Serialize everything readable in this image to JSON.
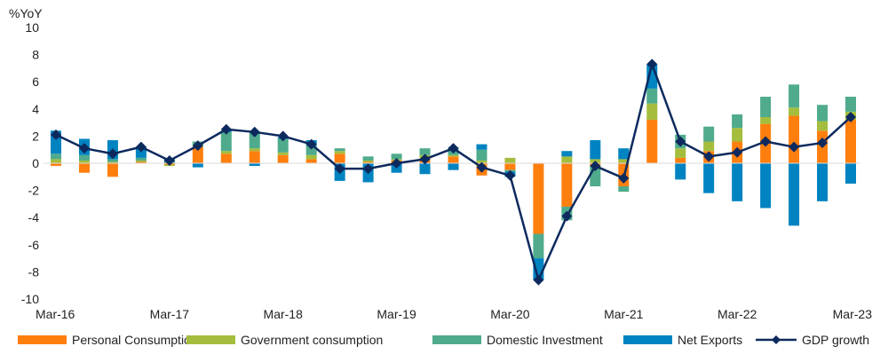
{
  "chart_data": {
    "type": "bar",
    "stacked": true,
    "ylabel": "%YoY",
    "ylim": [
      -10,
      10
    ],
    "yticks": [
      10,
      8,
      6,
      4,
      2,
      0,
      -2,
      -4,
      -6,
      -8,
      -10
    ],
    "grid": false,
    "legend_position": "bottom",
    "x": [
      "Mar-16",
      "Jun-16",
      "Sep-16",
      "Dec-16",
      "Mar-17",
      "Jun-17",
      "Sep-17",
      "Dec-17",
      "Mar-18",
      "Jun-18",
      "Sep-18",
      "Dec-18",
      "Mar-19",
      "Jun-19",
      "Sep-19",
      "Dec-19",
      "Mar-20",
      "Jun-20",
      "Sep-20",
      "Dec-20",
      "Mar-21",
      "Jun-21",
      "Sep-21",
      "Dec-21",
      "Mar-22",
      "Jun-22",
      "Sep-22",
      "Dec-22",
      "Mar-23"
    ],
    "x_tick_labels": [
      "Mar-16",
      "Mar-17",
      "Mar-18",
      "Mar-19",
      "Mar-20",
      "Mar-21",
      "Mar-22",
      "Mar-23"
    ],
    "series": [
      {
        "name": "Personal Consumption",
        "type": "bar",
        "color": "#FF7F0E",
        "values": [
          -0.2,
          -0.7,
          -1.0,
          0.1,
          -0.1,
          1.2,
          0.7,
          0.9,
          0.6,
          0.3,
          0.7,
          0.1,
          0.2,
          0.3,
          0.5,
          -0.9,
          -0.5,
          -5.2,
          -3.2,
          -0.2,
          -1.7,
          3.2,
          0.4,
          0.9,
          1.6,
          2.9,
          3.5,
          2.4,
          3.2
        ]
      },
      {
        "name": "Government consumption",
        "type": "bar",
        "color": "#A5BD3D",
        "values": [
          0.3,
          0.2,
          0.1,
          0.1,
          -0.1,
          0.1,
          0.2,
          0.2,
          0.2,
          0.3,
          0.2,
          0.1,
          0.1,
          0.3,
          0.1,
          0.2,
          0.4,
          0.0,
          0.5,
          0.3,
          0.3,
          1.2,
          0.7,
          0.7,
          1.0,
          0.5,
          0.6,
          0.7,
          0.6
        ]
      },
      {
        "name": "Domestic Investment",
        "type": "bar",
        "color": "#4FAB8C",
        "values": [
          0.4,
          0.4,
          0.2,
          0.2,
          0.1,
          0.3,
          1.4,
          1.2,
          1.0,
          0.7,
          0.2,
          0.3,
          0.4,
          0.5,
          0.6,
          0.8,
          -0.1,
          -1.8,
          -1.0,
          -1.5,
          -0.4,
          1.1,
          1.0,
          1.1,
          1.0,
          1.5,
          1.7,
          1.2,
          1.1
        ]
      },
      {
        "name": "Net Exports",
        "type": "bar",
        "color": "#0083C1",
        "values": [
          1.7,
          1.2,
          1.4,
          0.8,
          0.2,
          -0.3,
          0.1,
          -0.2,
          0.1,
          0.4,
          -1.3,
          -1.4,
          -0.7,
          -0.8,
          -0.5,
          0.4,
          -0.4,
          -1.6,
          0.4,
          1.4,
          0.8,
          1.8,
          -1.2,
          -2.2,
          -2.8,
          -3.3,
          -4.6,
          -2.8,
          -1.5
        ]
      },
      {
        "name": "GDP growth",
        "type": "line",
        "color": "#0D2A5E",
        "marker": "diamond",
        "values": [
          2.1,
          1.1,
          0.7,
          1.2,
          0.2,
          1.3,
          2.5,
          2.3,
          2.0,
          1.4,
          -0.4,
          -0.4,
          0.0,
          0.3,
          1.1,
          -0.3,
          -0.9,
          -8.6,
          -3.9,
          -0.2,
          -1.1,
          7.3,
          1.6,
          0.5,
          0.8,
          1.6,
          1.2,
          1.5,
          3.4
        ]
      }
    ]
  }
}
